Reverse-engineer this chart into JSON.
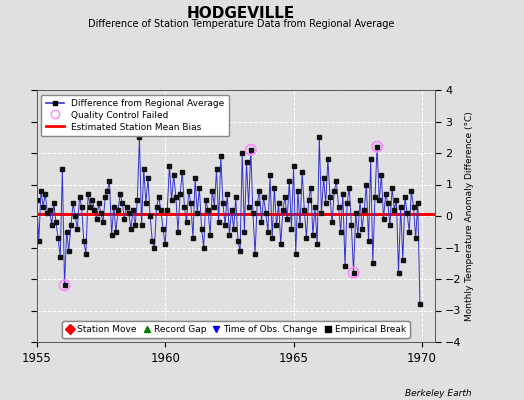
{
  "title": "HODGEVILLE",
  "subtitle": "Difference of Station Temperature Data from Regional Average",
  "ylabel": "Monthly Temperature Anomaly Difference (°C)",
  "xlabel_bottom": "Berkeley Earth",
  "bias": 0.05,
  "ylim": [
    -4,
    4
  ],
  "xlim": [
    1955.0,
    1970.5
  ],
  "xticks": [
    1955,
    1960,
    1965,
    1970
  ],
  "yticks": [
    -4,
    -3,
    -2,
    -1,
    0,
    1,
    2,
    3,
    4
  ],
  "background_color": "#e0e0e0",
  "plot_bg_color": "#e0e0e0",
  "line_color": "#3333cc",
  "marker_color": "#111111",
  "bias_color": "#ff0000",
  "qc_fail_color": "#ff88ff",
  "data": [
    [
      1955.0,
      0.5
    ],
    [
      1955.083,
      -0.8
    ],
    [
      1955.167,
      0.8
    ],
    [
      1955.25,
      0.3
    ],
    [
      1955.333,
      0.7
    ],
    [
      1955.417,
      0.1
    ],
    [
      1955.5,
      0.2
    ],
    [
      1955.583,
      -0.3
    ],
    [
      1955.667,
      0.4
    ],
    [
      1955.75,
      -0.2
    ],
    [
      1955.833,
      -0.7
    ],
    [
      1955.917,
      -1.3
    ],
    [
      1956.0,
      1.5
    ],
    [
      1956.083,
      -2.2
    ],
    [
      1956.167,
      -0.5
    ],
    [
      1956.25,
      -1.1
    ],
    [
      1956.333,
      -0.3
    ],
    [
      1956.417,
      0.4
    ],
    [
      1956.5,
      0.0
    ],
    [
      1956.583,
      -0.4
    ],
    [
      1956.667,
      0.6
    ],
    [
      1956.75,
      0.3
    ],
    [
      1956.833,
      -0.8
    ],
    [
      1956.917,
      -1.2
    ],
    [
      1957.0,
      0.7
    ],
    [
      1957.083,
      0.3
    ],
    [
      1957.167,
      0.5
    ],
    [
      1957.25,
      0.2
    ],
    [
      1957.333,
      -0.1
    ],
    [
      1957.417,
      0.4
    ],
    [
      1957.5,
      0.1
    ],
    [
      1957.583,
      -0.2
    ],
    [
      1957.667,
      0.6
    ],
    [
      1957.75,
      0.8
    ],
    [
      1957.833,
      1.1
    ],
    [
      1957.917,
      -0.6
    ],
    [
      1958.0,
      0.3
    ],
    [
      1958.083,
      -0.5
    ],
    [
      1958.167,
      0.2
    ],
    [
      1958.25,
      0.7
    ],
    [
      1958.333,
      0.4
    ],
    [
      1958.417,
      -0.1
    ],
    [
      1958.5,
      0.3
    ],
    [
      1958.583,
      0.1
    ],
    [
      1958.667,
      -0.4
    ],
    [
      1958.75,
      0.2
    ],
    [
      1958.833,
      -0.3
    ],
    [
      1958.917,
      0.5
    ],
    [
      1959.0,
      2.5
    ],
    [
      1959.083,
      -0.3
    ],
    [
      1959.167,
      1.5
    ],
    [
      1959.25,
      0.4
    ],
    [
      1959.333,
      1.2
    ],
    [
      1959.417,
      0.0
    ],
    [
      1959.5,
      -0.8
    ],
    [
      1959.583,
      -1.0
    ],
    [
      1959.667,
      0.3
    ],
    [
      1959.75,
      0.6
    ],
    [
      1959.833,
      0.2
    ],
    [
      1959.917,
      -0.4
    ],
    [
      1960.0,
      -0.9
    ],
    [
      1960.083,
      0.2
    ],
    [
      1960.167,
      1.6
    ],
    [
      1960.25,
      0.5
    ],
    [
      1960.333,
      1.3
    ],
    [
      1960.417,
      0.6
    ],
    [
      1960.5,
      -0.5
    ],
    [
      1960.583,
      0.7
    ],
    [
      1960.667,
      1.4
    ],
    [
      1960.75,
      0.3
    ],
    [
      1960.833,
      -0.2
    ],
    [
      1960.917,
      0.8
    ],
    [
      1961.0,
      0.4
    ],
    [
      1961.083,
      -0.7
    ],
    [
      1961.167,
      1.2
    ],
    [
      1961.25,
      0.1
    ],
    [
      1961.333,
      0.9
    ],
    [
      1961.417,
      -0.4
    ],
    [
      1961.5,
      -1.0
    ],
    [
      1961.583,
      0.5
    ],
    [
      1961.667,
      0.2
    ],
    [
      1961.75,
      -0.6
    ],
    [
      1961.833,
      0.8
    ],
    [
      1961.917,
      0.3
    ],
    [
      1962.0,
      1.5
    ],
    [
      1962.083,
      -0.2
    ],
    [
      1962.167,
      1.9
    ],
    [
      1962.25,
      0.4
    ],
    [
      1962.333,
      -0.3
    ],
    [
      1962.417,
      0.7
    ],
    [
      1962.5,
      -0.6
    ],
    [
      1962.583,
      0.2
    ],
    [
      1962.667,
      -0.4
    ],
    [
      1962.75,
      0.6
    ],
    [
      1962.833,
      -0.8
    ],
    [
      1962.917,
      -1.1
    ],
    [
      1963.0,
      2.0
    ],
    [
      1963.083,
      -0.5
    ],
    [
      1963.167,
      1.7
    ],
    [
      1963.25,
      0.3
    ],
    [
      1963.333,
      2.1
    ],
    [
      1963.417,
      0.1
    ],
    [
      1963.5,
      -1.2
    ],
    [
      1963.583,
      0.4
    ],
    [
      1963.667,
      0.8
    ],
    [
      1963.75,
      -0.2
    ],
    [
      1963.833,
      0.6
    ],
    [
      1963.917,
      0.1
    ],
    [
      1964.0,
      -0.5
    ],
    [
      1964.083,
      1.3
    ],
    [
      1964.167,
      -0.7
    ],
    [
      1964.25,
      0.9
    ],
    [
      1964.333,
      -0.3
    ],
    [
      1964.417,
      0.4
    ],
    [
      1964.5,
      -0.9
    ],
    [
      1964.583,
      0.2
    ],
    [
      1964.667,
      0.6
    ],
    [
      1964.75,
      -0.1
    ],
    [
      1964.833,
      1.1
    ],
    [
      1964.917,
      -0.4
    ],
    [
      1965.0,
      1.6
    ],
    [
      1965.083,
      -1.2
    ],
    [
      1965.167,
      0.8
    ],
    [
      1965.25,
      -0.3
    ],
    [
      1965.333,
      1.4
    ],
    [
      1965.417,
      0.2
    ],
    [
      1965.5,
      -0.7
    ],
    [
      1965.583,
      0.5
    ],
    [
      1965.667,
      0.9
    ],
    [
      1965.75,
      -0.6
    ],
    [
      1965.833,
      0.3
    ],
    [
      1965.917,
      -0.9
    ],
    [
      1966.0,
      2.5
    ],
    [
      1966.083,
      0.1
    ],
    [
      1966.167,
      1.2
    ],
    [
      1966.25,
      0.4
    ],
    [
      1966.333,
      1.8
    ],
    [
      1966.417,
      0.6
    ],
    [
      1966.5,
      -0.2
    ],
    [
      1966.583,
      0.8
    ],
    [
      1966.667,
      1.1
    ],
    [
      1966.75,
      0.3
    ],
    [
      1966.833,
      -0.5
    ],
    [
      1966.917,
      0.7
    ],
    [
      1967.0,
      -1.6
    ],
    [
      1967.083,
      0.4
    ],
    [
      1967.167,
      0.9
    ],
    [
      1967.25,
      -0.3
    ],
    [
      1967.333,
      -1.8
    ],
    [
      1967.417,
      0.1
    ],
    [
      1967.5,
      -0.6
    ],
    [
      1967.583,
      0.5
    ],
    [
      1967.667,
      -0.4
    ],
    [
      1967.75,
      0.2
    ],
    [
      1967.833,
      1.0
    ],
    [
      1967.917,
      -0.8
    ],
    [
      1968.0,
      1.8
    ],
    [
      1968.083,
      -1.5
    ],
    [
      1968.167,
      0.6
    ],
    [
      1968.25,
      2.2
    ],
    [
      1968.333,
      0.5
    ],
    [
      1968.417,
      1.3
    ],
    [
      1968.5,
      -0.1
    ],
    [
      1968.583,
      0.7
    ],
    [
      1968.667,
      0.4
    ],
    [
      1968.75,
      -0.3
    ],
    [
      1968.833,
      0.9
    ],
    [
      1968.917,
      0.2
    ],
    [
      1969.0,
      0.5
    ],
    [
      1969.083,
      -1.8
    ],
    [
      1969.167,
      0.3
    ],
    [
      1969.25,
      -1.4
    ],
    [
      1969.333,
      0.6
    ],
    [
      1969.417,
      0.1
    ],
    [
      1969.5,
      -0.5
    ],
    [
      1969.583,
      0.8
    ],
    [
      1969.667,
      0.3
    ],
    [
      1969.75,
      -0.7
    ],
    [
      1969.833,
      0.4
    ],
    [
      1969.917,
      -2.8
    ]
  ],
  "qc_fail_points": [
    [
      1956.083,
      -2.2
    ],
    [
      1963.333,
      2.1
    ],
    [
      1967.333,
      -1.8
    ],
    [
      1968.25,
      2.2
    ]
  ],
  "legend1_labels": [
    "Difference from Regional Average",
    "Quality Control Failed",
    "Estimated Station Mean Bias"
  ],
  "legend2_labels": [
    "Station Move",
    "Record Gap",
    "Time of Obs. Change",
    "Empirical Break"
  ]
}
